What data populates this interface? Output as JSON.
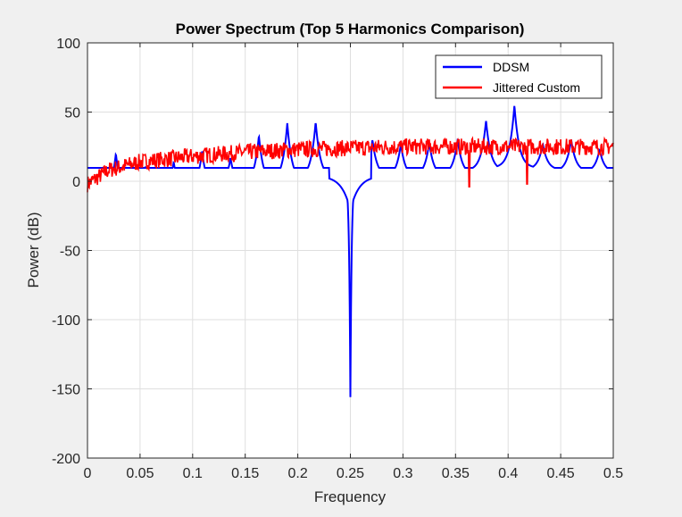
{
  "chart_data": {
    "type": "line",
    "title": "Power Spectrum (Top 5 Harmonics Comparison)",
    "xlabel": "Frequency",
    "ylabel": "Power (dB)",
    "xlim": [
      0,
      0.5
    ],
    "ylim": [
      -200,
      100
    ],
    "xticks": [
      0,
      0.05,
      0.1,
      0.15,
      0.2,
      0.25,
      0.3,
      0.35,
      0.4,
      0.45,
      0.5
    ],
    "xtick_labels": [
      "0",
      "0.05",
      "0.1",
      "0.15",
      "0.2",
      "0.25",
      "0.3",
      "0.35",
      "0.4",
      "0.45",
      "0.5"
    ],
    "yticks": [
      -200,
      -150,
      -100,
      -50,
      0,
      50,
      100
    ],
    "ytick_labels": [
      "-200",
      "-150",
      "-100",
      "-50",
      "0",
      "50",
      "100"
    ],
    "grid": true,
    "legend_position": "top-right",
    "series": [
      {
        "name": "DDSM",
        "color": "#0000ff",
        "baseline_points": [
          [
            0,
            -11
          ],
          [
            0.02,
            -10
          ],
          [
            0.05,
            -12
          ],
          [
            0.1,
            -8
          ],
          [
            0.15,
            -4
          ],
          [
            0.2,
            0
          ],
          [
            0.23,
            3
          ],
          [
            0.25,
            4
          ],
          [
            0.27,
            3
          ],
          [
            0.3,
            2
          ],
          [
            0.35,
            4
          ],
          [
            0.4,
            10
          ],
          [
            0.42,
            9
          ],
          [
            0.45,
            7
          ],
          [
            0.5,
            6
          ]
        ],
        "peaks": [
          {
            "x": 0.027,
            "y": 20
          },
          {
            "x": 0.055,
            "y": 10
          },
          {
            "x": 0.082,
            "y": 14
          },
          {
            "x": 0.109,
            "y": 22
          },
          {
            "x": 0.136,
            "y": 17
          },
          {
            "x": 0.163,
            "y": 33
          },
          {
            "x": 0.19,
            "y": 42
          },
          {
            "x": 0.217,
            "y": 43
          },
          {
            "x": 0.244,
            "y": 30
          },
          {
            "x": 0.271,
            "y": 30
          },
          {
            "x": 0.298,
            "y": 27
          },
          {
            "x": 0.325,
            "y": 28
          },
          {
            "x": 0.352,
            "y": 30
          },
          {
            "x": 0.379,
            "y": 44
          },
          {
            "x": 0.406,
            "y": 55
          },
          {
            "x": 0.433,
            "y": 27
          },
          {
            "x": 0.46,
            "y": 30
          },
          {
            "x": 0.487,
            "y": 23
          }
        ],
        "notch": {
          "x": 0.25,
          "y": -156
        }
      },
      {
        "name": "Jittered Custom",
        "color": "#ff0000",
        "noise_floor_points": [
          [
            0,
            -2
          ],
          [
            0.02,
            8
          ],
          [
            0.05,
            14
          ],
          [
            0.1,
            18
          ],
          [
            0.15,
            21
          ],
          [
            0.2,
            23
          ],
          [
            0.25,
            24
          ],
          [
            0.3,
            25
          ],
          [
            0.35,
            25
          ],
          [
            0.4,
            25
          ],
          [
            0.45,
            25
          ],
          [
            0.5,
            25
          ]
        ],
        "noise_amplitude_db": 6,
        "dips": [
          {
            "x": 0.363,
            "y": -4
          },
          {
            "x": 0.418,
            "y": -2
          }
        ]
      }
    ]
  }
}
